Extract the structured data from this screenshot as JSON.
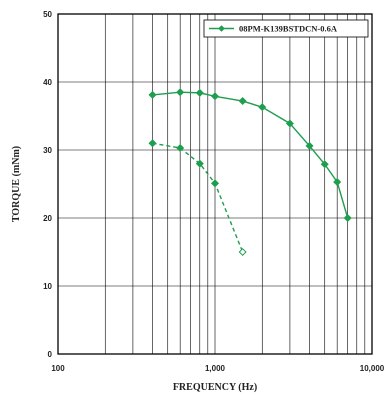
{
  "chart_data": {
    "type": "line",
    "xlabel": "FREQUENCY (Hz)",
    "ylabel": "TORQUE (mNm)",
    "xscale": "log",
    "xlim": [
      100,
      10000
    ],
    "ylim": [
      0,
      50
    ],
    "x_ticks": [
      {
        "value": 100,
        "label": "100"
      },
      {
        "value": 1000,
        "label": "1,000"
      },
      {
        "value": 10000,
        "label": "10,000"
      }
    ],
    "y_ticks": [
      {
        "value": 0,
        "label": "0"
      },
      {
        "value": 10,
        "label": "10"
      },
      {
        "value": 20,
        "label": "20"
      },
      {
        "value": 30,
        "label": "30"
      },
      {
        "value": 40,
        "label": "40"
      },
      {
        "value": 50,
        "label": "50"
      }
    ],
    "grid": true,
    "legend_position": "top-right",
    "color": "#1f9e50",
    "series": [
      {
        "name": "08PM-K139BSTDCN-0.6A",
        "style": "solid",
        "marker": "diamond-filled",
        "x": [
          400,
          600,
          800,
          1000,
          1500,
          2000,
          3000,
          4000,
          5000,
          6000,
          7000
        ],
        "y": [
          38.1,
          38.5,
          38.4,
          37.9,
          37.2,
          36.3,
          33.9,
          30.6,
          27.9,
          25.3,
          20.0
        ]
      },
      {
        "name": "",
        "style": "dashed",
        "marker": "diamond-mixed",
        "x": [
          400,
          600,
          800,
          1000,
          1500
        ],
        "y": [
          31.0,
          30.3,
          28.0,
          25.1,
          15.0
        ]
      }
    ]
  }
}
